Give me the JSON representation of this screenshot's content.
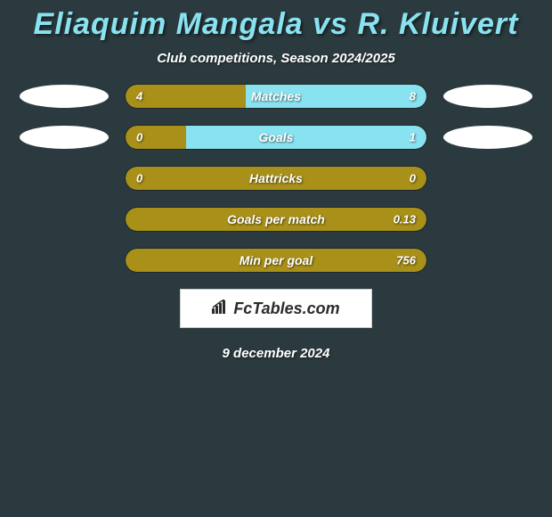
{
  "title_color": "#89e2f0",
  "background_color": "#2b3a3e",
  "player_left": "Eliaquim Mangala",
  "vs_text": "vs",
  "player_right": "R. Kluivert",
  "subtitle": "Club competitions, Season 2024/2025",
  "date_text": "9 december 2024",
  "logo_text": "FcTables.com",
  "colors": {
    "left_seg": "#a89019",
    "right_seg_active": "#89e2f0",
    "right_seg_neutral": "#a89019",
    "badge": "#ffffff"
  },
  "rows": [
    {
      "label": "Matches",
      "left_val": "4",
      "right_val": "8",
      "left_pct": 40,
      "left_color": "#a89019",
      "right_color": "#89e2f0",
      "show_badges": true
    },
    {
      "label": "Goals",
      "left_val": "0",
      "right_val": "1",
      "left_pct": 20,
      "left_color": "#a89019",
      "right_color": "#89e2f0",
      "show_badges": true
    },
    {
      "label": "Hattricks",
      "left_val": "0",
      "right_val": "0",
      "left_pct": 50,
      "left_color": "#a89019",
      "right_color": "#a89019",
      "show_badges": false
    },
    {
      "label": "Goals per match",
      "left_val": "",
      "right_val": "0.13",
      "left_pct": 50,
      "left_color": "#a89019",
      "right_color": "#a89019",
      "show_badges": false
    },
    {
      "label": "Min per goal",
      "left_val": "",
      "right_val": "756",
      "left_pct": 50,
      "left_color": "#a89019",
      "right_color": "#a89019",
      "show_badges": false
    }
  ]
}
